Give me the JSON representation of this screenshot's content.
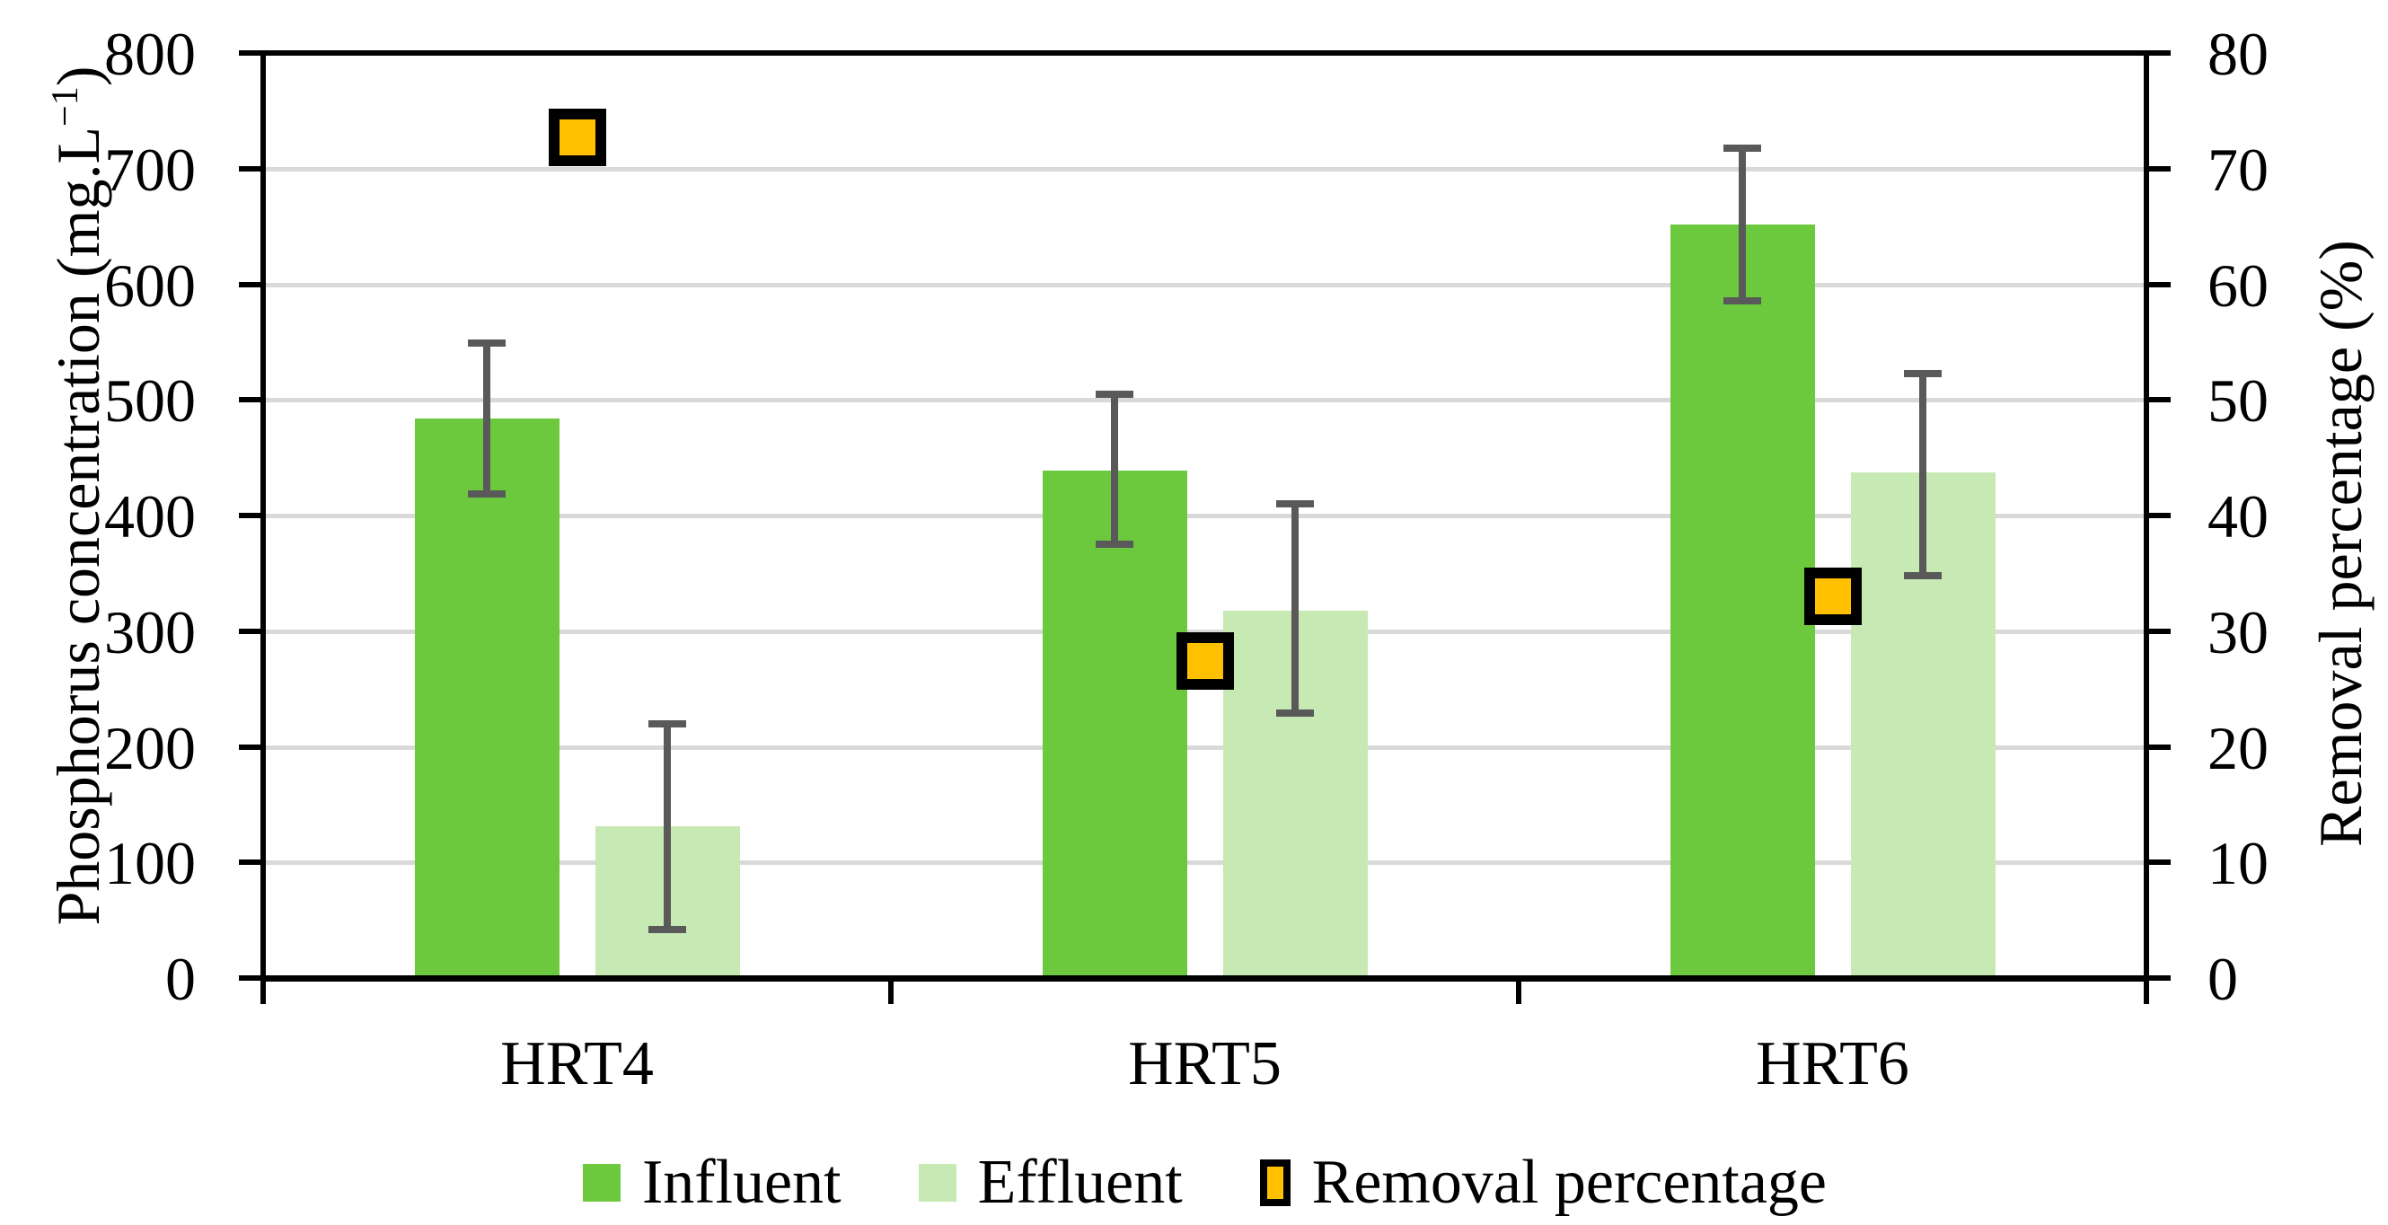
{
  "figure": {
    "title": "",
    "legend": [
      {
        "label": "Influent",
        "color": "#6CC93D",
        "marker": "square-swatch"
      },
      {
        "label": "Effluent",
        "color": "#C7E9B4",
        "marker": "square-swatch"
      },
      {
        "label": "Removal percentage",
        "color": "#FFC000",
        "border": "#000000",
        "marker": "bordered-square"
      }
    ]
  },
  "colors": {
    "influent": "#6CC93D",
    "effluent": "#C7E9B4",
    "removal_marker": "#FFC000",
    "error_bar": "#595959",
    "gridline": "#D9D9D9",
    "axis": "#000000"
  },
  "chart_data": {
    "type": "bar",
    "categories": [
      "HRT4",
      "HRT5",
      "HRT6"
    ],
    "left_axis": {
      "label": "Phosphorus concentration (mg.L−1)",
      "label_prefix": "Phosphorus concentration (mg.L",
      "label_sup": "−1",
      "label_suffix": ")",
      "min": 0,
      "max": 800,
      "tick_step": 100,
      "ticks": [
        0,
        100,
        200,
        300,
        400,
        500,
        600,
        700,
        800
      ]
    },
    "right_axis": {
      "label": "Removal percentage (%)",
      "min": 0,
      "max": 80,
      "tick_step": 10,
      "ticks": [
        0,
        10,
        20,
        30,
        40,
        50,
        60,
        70,
        80
      ]
    },
    "series": [
      {
        "name": "Influent",
        "type": "bar",
        "axis": "left",
        "color": "#6CC93D",
        "values": [
          484,
          439,
          652
        ],
        "error_low": [
          419,
          375,
          586
        ],
        "error_high": [
          549,
          505,
          718
        ]
      },
      {
        "name": "Effluent",
        "type": "bar",
        "axis": "left",
        "color": "#C7E9B4",
        "values": [
          131,
          318,
          437
        ],
        "error_low": [
          42,
          229,
          348
        ],
        "error_high": [
          220,
          410,
          523
        ]
      },
      {
        "name": "Removal percentage",
        "type": "scatter-square",
        "axis": "right",
        "color": "#FFC000",
        "values": [
          72.7,
          27.4,
          33.0
        ]
      }
    ],
    "grid": true,
    "legend_position": "bottom"
  }
}
